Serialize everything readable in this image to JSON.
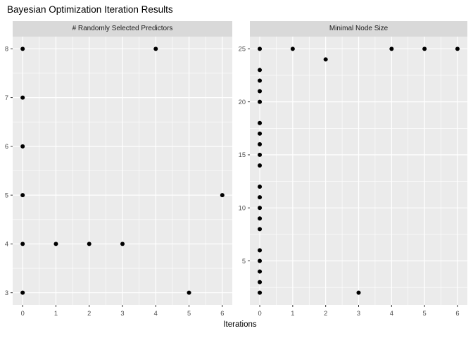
{
  "title": "Bayesian Optimization Iteration Results",
  "xlabel": "Iterations",
  "colors": {
    "figure_bg": "#FFFFFF",
    "panel_bg": "#EBEBEB",
    "strip_bg": "#D9D9D9",
    "grid": "#FFFFFF",
    "point": "#000000",
    "axis_text": "#4D4D4D",
    "tick_mark": "#333333",
    "strip_text": "#1A1A1A",
    "title_text": "#000000"
  },
  "chart_data": [
    {
      "type": "scatter",
      "facet_label": "# Randomly Selected Predictors",
      "xlabel": "Iterations",
      "ylabel": "",
      "grid": true,
      "legend": "none",
      "xlim": [
        -0.3,
        6.3
      ],
      "ylim": [
        2.75,
        8.25
      ],
      "x_ticks": [
        0,
        1,
        2,
        3,
        4,
        5,
        6
      ],
      "y_ticks": [
        3,
        4,
        5,
        6,
        7,
        8
      ],
      "x_minor": [
        0.5,
        1.5,
        2.5,
        3.5,
        4.5,
        5.5
      ],
      "y_minor": [
        3.5,
        4.5,
        5.5,
        6.5,
        7.5
      ],
      "points": [
        [
          0,
          3
        ],
        [
          0,
          4
        ],
        [
          0,
          5
        ],
        [
          0,
          6
        ],
        [
          0,
          7
        ],
        [
          0,
          8
        ],
        [
          1,
          4
        ],
        [
          2,
          4
        ],
        [
          3,
          4
        ],
        [
          4,
          8
        ],
        [
          5,
          3
        ],
        [
          6,
          5
        ]
      ]
    },
    {
      "type": "scatter",
      "facet_label": "Minimal Node Size",
      "xlabel": "Iterations",
      "ylabel": "",
      "grid": true,
      "legend": "none",
      "xlim": [
        -0.3,
        6.3
      ],
      "ylim": [
        0.85,
        26.15
      ],
      "x_ticks": [
        0,
        1,
        2,
        3,
        4,
        5,
        6
      ],
      "y_ticks": [
        5,
        10,
        15,
        20,
        25
      ],
      "x_minor": [
        0.5,
        1.5,
        2.5,
        3.5,
        4.5,
        5.5
      ],
      "y_minor": [
        2.5,
        7.5,
        12.5,
        17.5,
        22.5
      ],
      "points": [
        [
          0,
          2
        ],
        [
          0,
          3
        ],
        [
          0,
          4
        ],
        [
          0,
          5
        ],
        [
          0,
          6
        ],
        [
          0,
          8
        ],
        [
          0,
          9
        ],
        [
          0,
          10
        ],
        [
          0,
          11
        ],
        [
          0,
          12
        ],
        [
          0,
          14
        ],
        [
          0,
          15
        ],
        [
          0,
          16
        ],
        [
          0,
          17
        ],
        [
          0,
          18
        ],
        [
          0,
          20
        ],
        [
          0,
          21
        ],
        [
          0,
          22
        ],
        [
          0,
          23
        ],
        [
          0,
          25
        ],
        [
          1,
          25
        ],
        [
          2,
          24
        ],
        [
          3,
          2
        ],
        [
          4,
          25
        ],
        [
          5,
          25
        ],
        [
          6,
          25
        ]
      ]
    }
  ]
}
